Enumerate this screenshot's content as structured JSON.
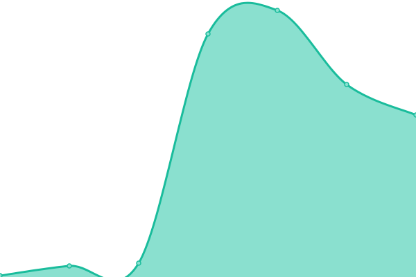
{
  "chart_data": {
    "type": "area",
    "x": [
      0,
      1,
      2,
      3,
      4,
      5,
      6
    ],
    "values": [
      2,
      16,
      20,
      351,
      385,
      278,
      234
    ],
    "ylim": [
      0,
      400
    ],
    "xlim": [
      0,
      6
    ],
    "grid": false,
    "axes_visible": false,
    "smooth": true,
    "markers": true,
    "colors": {
      "fill": "#8ae0cf",
      "line": "#1abc9c",
      "marker_fill": "#8ae0cf"
    }
  }
}
